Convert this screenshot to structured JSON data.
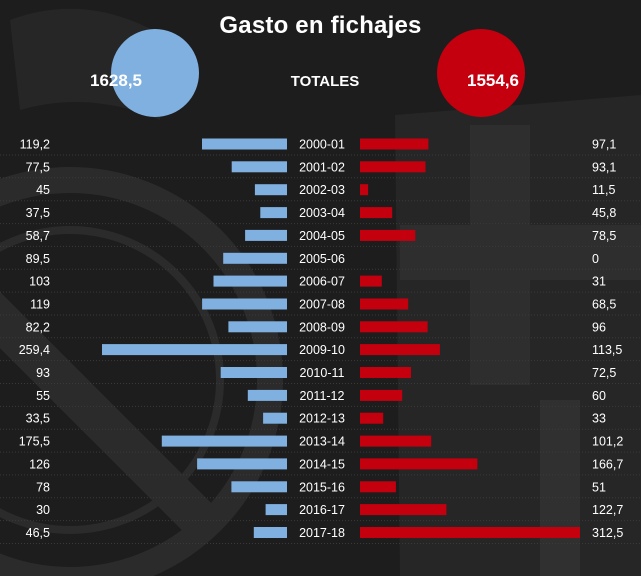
{
  "chart_data": {
    "type": "bar",
    "title": "Gasto en fichajes",
    "center_label": "TOTALES",
    "categories": [
      "2000-01",
      "2001-02",
      "2002-03",
      "2003-04",
      "2004-05",
      "2005-06",
      "2006-07",
      "2007-08",
      "2008-09",
      "2009-10",
      "2010-11",
      "2011-12",
      "2012-13",
      "2013-14",
      "2014-15",
      "2015-16",
      "2016-17",
      "2017-18"
    ],
    "series": [
      {
        "side": "left",
        "color": "#7fb0e0",
        "total": "1628,5",
        "values": [
          119.2,
          77.5,
          45,
          37.5,
          58.7,
          89.5,
          103,
          119,
          82.2,
          259.4,
          93,
          55,
          33.5,
          175.5,
          126,
          78,
          30,
          46.5
        ],
        "labels": [
          "119,2",
          "77,5",
          "45",
          "37,5",
          "58,7",
          "89,5",
          "103",
          "119",
          "82,2",
          "259,4",
          "93",
          "55",
          "33,5",
          "175,5",
          "126",
          "78",
          "30",
          "46,5"
        ]
      },
      {
        "side": "right",
        "color": "#c4000f",
        "total": "1554,6",
        "values": [
          97.1,
          93.1,
          11.5,
          45.8,
          78.5,
          0,
          31,
          68.5,
          96,
          113.5,
          72.5,
          60,
          33,
          101.2,
          166.7,
          51,
          122.7,
          312.5
        ],
        "labels": [
          "97,1",
          "93,1",
          "11,5",
          "45,8",
          "78,5",
          "0",
          "31",
          "68,5",
          "96",
          "113,5",
          "72,5",
          "60",
          "33",
          "101,2",
          "166,7",
          "51",
          "122,7",
          "312,5"
        ]
      }
    ]
  }
}
